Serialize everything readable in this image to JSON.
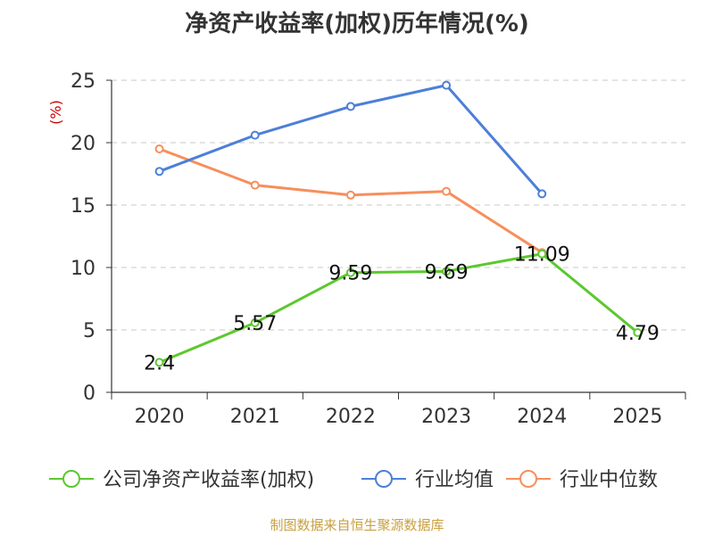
{
  "title": "净资产收益率(加权)历年情况(%)",
  "footer": "制图数据来自恒生聚源数据库",
  "chart_data": {
    "type": "line",
    "title": "净资产收益率(加权)历年情况(%)",
    "ylabel": "(%)",
    "xlabel": "",
    "ylim": [
      0,
      25
    ],
    "yticks": [
      0,
      5,
      10,
      15,
      20,
      25
    ],
    "categories": [
      "2020",
      "2021",
      "2022",
      "2023",
      "2024",
      "2025"
    ],
    "grid": true,
    "legend_position": "bottom",
    "series": [
      {
        "name": "公司净资产收益率(加权)",
        "color": "#5cc82e",
        "values": [
          2.4,
          5.57,
          9.59,
          9.69,
          11.09,
          4.79
        ],
        "show_labels": true
      },
      {
        "name": "行业均值",
        "color": "#4d7fd9",
        "values": [
          17.7,
          20.6,
          22.9,
          24.6,
          15.9,
          null
        ],
        "show_labels": false
      },
      {
        "name": "行业中位数",
        "color": "#f78e5c",
        "values": [
          19.5,
          16.6,
          15.8,
          16.1,
          11.2,
          null
        ],
        "show_labels": false
      }
    ],
    "data_labels": [
      "2.4",
      "5.57",
      "9.59",
      "9.69",
      "11.09",
      "4.79"
    ]
  }
}
